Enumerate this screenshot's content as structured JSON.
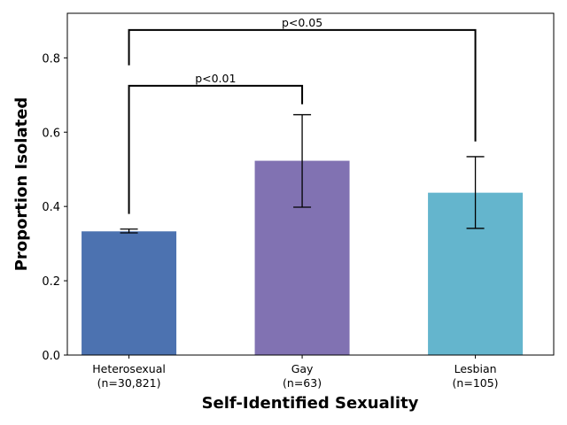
{
  "chart_data": {
    "type": "bar",
    "title": "",
    "xlabel": "Self-Identified Sexuality",
    "ylabel": "Proportion Isolated",
    "ylim": [
      0,
      0.92
    ],
    "yticks": [
      0.0,
      0.2,
      0.4,
      0.6,
      0.8
    ],
    "ytick_labels": [
      "0.0",
      "0.2",
      "0.4",
      "0.6",
      "0.8"
    ],
    "grid": false,
    "categories": [
      {
        "label": "Heterosexual",
        "n_label": "(n=30,821)"
      },
      {
        "label": "Gay",
        "n_label": "(n=63)"
      },
      {
        "label": "Lesbian",
        "n_label": "(n=105)"
      }
    ],
    "values": [
      0.333,
      0.523,
      0.437
    ],
    "error_low": [
      0.329,
      0.398,
      0.341
    ],
    "error_high": [
      0.339,
      0.647,
      0.534
    ],
    "colors": [
      "#4c72b0",
      "#8172b2",
      "#64b5cd"
    ],
    "significance": [
      {
        "from": 0,
        "to": 1,
        "label": "p<0.01",
        "y": 0.725,
        "start_y_from": 0.38,
        "start_y_to": 0.675
      },
      {
        "from": 0,
        "to": 2,
        "label": "p<0.05",
        "y": 0.875,
        "start_y_from": 0.78,
        "start_y_to": 0.575
      }
    ]
  }
}
